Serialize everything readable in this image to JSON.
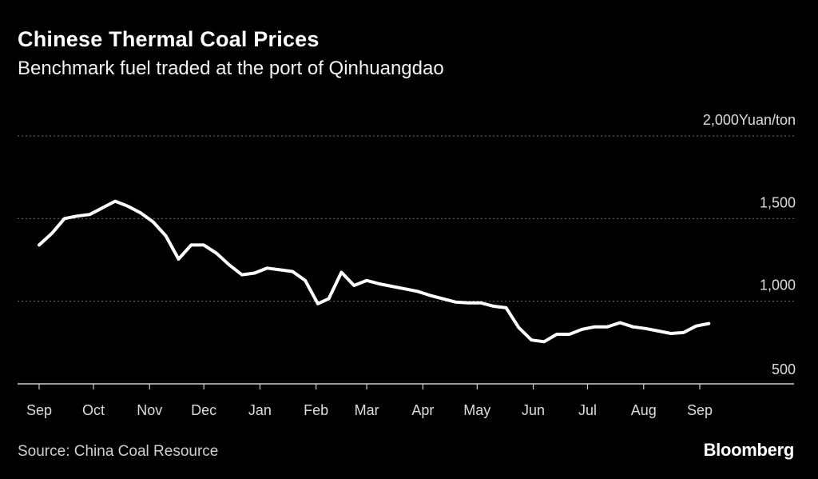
{
  "header": {
    "title": "Chinese Thermal Coal Prices",
    "subtitle": "Benchmark fuel traded at the port of Qinhuangdao"
  },
  "footer": {
    "source": "Source: China Coal Resource",
    "brand": "Bloomberg"
  },
  "colors": {
    "background": "#000000",
    "line": "#ffffff",
    "grid": "#6e6e6e",
    "text": "#dcdcdc"
  },
  "chart_data": {
    "type": "line",
    "title": "Chinese Thermal Coal Prices",
    "subtitle": "Benchmark fuel traded at the port of Qinhuangdao",
    "ylabel": "Yuan/ton",
    "ylim": [
      500,
      2000
    ],
    "y_ticks": [
      "2,000",
      "1,500",
      "1,000",
      "500"
    ],
    "y_unit": "Yuan/ton",
    "x_ticks": [
      "Sep",
      "Oct",
      "Nov",
      "Dec",
      "Jan",
      "Feb",
      "Mar",
      "Apr",
      "May",
      "Jun",
      "Jul",
      "Aug",
      "Sep"
    ],
    "grid": true,
    "series": [
      {
        "name": "",
        "points": [
          [
            "2022-09-01",
            1340
          ],
          [
            "2022-09-08",
            1410
          ],
          [
            "2022-09-15",
            1500
          ],
          [
            "2022-09-22",
            1515
          ],
          [
            "2022-09-29",
            1525
          ],
          [
            "2022-10-06",
            1565
          ],
          [
            "2022-10-13",
            1605
          ],
          [
            "2022-10-20",
            1575
          ],
          [
            "2022-10-27",
            1535
          ],
          [
            "2022-11-03",
            1480
          ],
          [
            "2022-11-10",
            1395
          ],
          [
            "2022-11-17",
            1255
          ],
          [
            "2022-11-24",
            1340
          ],
          [
            "2022-12-01",
            1340
          ],
          [
            "2022-12-08",
            1290
          ],
          [
            "2022-12-15",
            1220
          ],
          [
            "2022-12-22",
            1160
          ],
          [
            "2022-12-29",
            1170
          ],
          [
            "2023-01-05",
            1200
          ],
          [
            "2023-01-12",
            1190
          ],
          [
            "2023-01-19",
            1180
          ],
          [
            "2023-01-26",
            1125
          ],
          [
            "2023-02-02",
            985
          ],
          [
            "2023-02-08",
            1015
          ],
          [
            "2023-02-15",
            1175
          ],
          [
            "2023-02-22",
            1095
          ],
          [
            "2023-03-01",
            1125
          ],
          [
            "2023-03-08",
            1105
          ],
          [
            "2023-03-15",
            1090
          ],
          [
            "2023-03-22",
            1075
          ],
          [
            "2023-03-29",
            1060
          ],
          [
            "2023-04-05",
            1035
          ],
          [
            "2023-04-12",
            1015
          ],
          [
            "2023-04-19",
            995
          ],
          [
            "2023-04-26",
            990
          ],
          [
            "2023-05-03",
            990
          ],
          [
            "2023-05-10",
            970
          ],
          [
            "2023-05-17",
            960
          ],
          [
            "2023-05-24",
            840
          ],
          [
            "2023-05-31",
            765
          ],
          [
            "2023-06-07",
            755
          ],
          [
            "2023-06-14",
            800
          ],
          [
            "2023-06-21",
            800
          ],
          [
            "2023-06-28",
            830
          ],
          [
            "2023-07-05",
            845
          ],
          [
            "2023-07-12",
            845
          ],
          [
            "2023-07-19",
            870
          ],
          [
            "2023-07-26",
            845
          ],
          [
            "2023-08-02",
            835
          ],
          [
            "2023-08-09",
            820
          ],
          [
            "2023-08-16",
            805
          ],
          [
            "2023-08-23",
            810
          ],
          [
            "2023-08-30",
            850
          ],
          [
            "2023-09-06",
            865
          ]
        ]
      }
    ]
  }
}
